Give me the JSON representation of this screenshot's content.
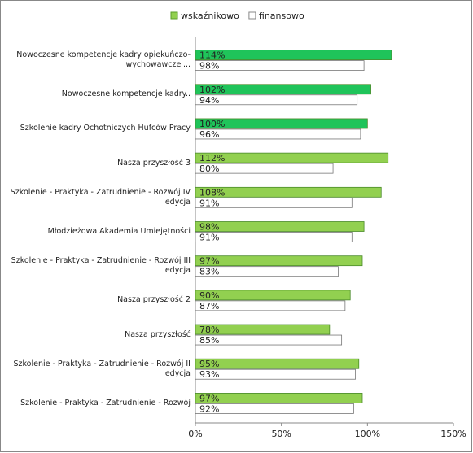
{
  "chart_data": {
    "type": "bar",
    "orientation": "horizontal",
    "categories": [
      "Nowoczesne kompetencje kadry opiekuńczo-wychowawczej...",
      "Nowoczesne kompetencje kadry..",
      "Szkolenie kadry Ochotniczych Hufców Pracy",
      "Nasza przyszłość 3",
      "Szkolenie - Praktyka - Zatrudnienie - Rozwój IV edycja",
      "Młodzieżowa Akademia Umiejętności",
      "Szkolenie - Praktyka - Zatrudnienie - Rozwój III edycja",
      "Nasza przyszłość 2",
      "Nasza przyszłość",
      "Szkolenie - Praktyka - Zatrudnienie - Rozwój II edycja",
      "Szkolenie - Praktyka - Zatrudnienie - Rozwój"
    ],
    "series": [
      {
        "name": "wskaźnikowo",
        "color": "#92d050",
        "colors": [
          "#1fc45a",
          "#1fc45a",
          "#1fc45a",
          "#92d050",
          "#92d050",
          "#92d050",
          "#92d050",
          "#92d050",
          "#92d050",
          "#92d050",
          "#92d050"
        ],
        "values": [
          114,
          102,
          100,
          112,
          108,
          98,
          97,
          90,
          78,
          95,
          97
        ],
        "value_labels": [
          "114%",
          "102%",
          "100%",
          "112%",
          "108%",
          "98%",
          "97%",
          "90%",
          "78%",
          "95%",
          "97%"
        ]
      },
      {
        "name": "finansowo",
        "color": "#ffffff",
        "values": [
          98,
          94,
          96,
          80,
          91,
          91,
          83,
          87,
          85,
          93,
          92
        ],
        "value_labels": [
          "98%",
          "94%",
          "96%",
          "80%",
          "91%",
          "91%",
          "83%",
          "87%",
          "85%",
          "93%",
          "92%"
        ]
      }
    ],
    "xlim": [
      0,
      150
    ],
    "xticks": [
      {
        "value": 0,
        "label": "0%"
      },
      {
        "value": 50,
        "label": "50%"
      },
      {
        "value": 100,
        "label": "100%"
      },
      {
        "value": 150,
        "label": "150%"
      }
    ],
    "legend": "top"
  }
}
